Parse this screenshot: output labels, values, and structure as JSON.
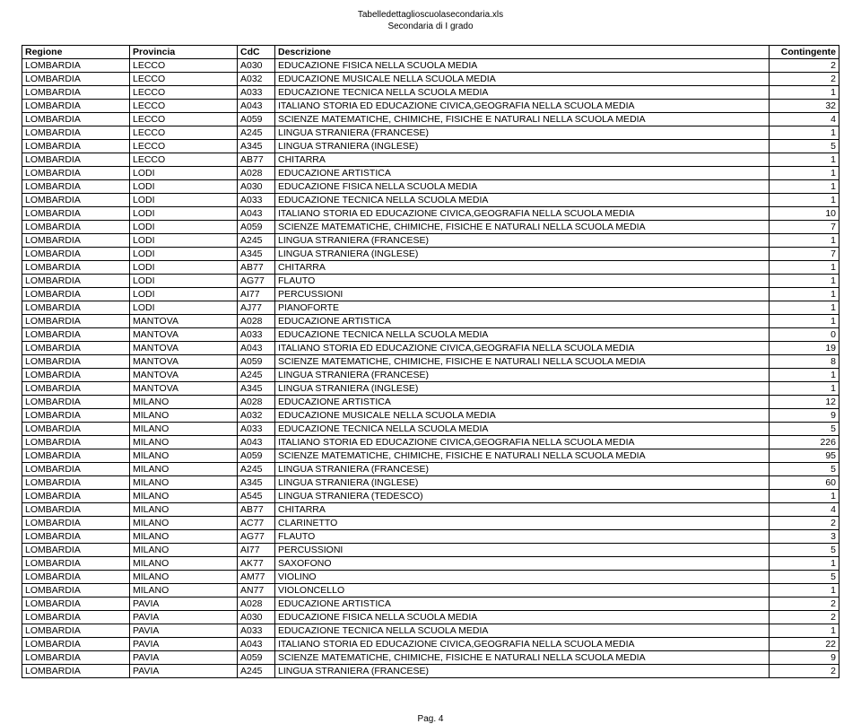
{
  "header": {
    "filename": "Tabelledettaglioscuolasecondaria.xls",
    "subtitle": "Secondaria di I grado"
  },
  "columns": {
    "regione": "Regione",
    "provincia": "Provincia",
    "cdc": "CdC",
    "descrizione": "Descrizione",
    "contingente": "Contingente"
  },
  "rows": [
    {
      "regione": "LOMBARDIA",
      "provincia": "LECCO",
      "cdc": "A030",
      "desc": "EDUCAZIONE FISICA NELLA SCUOLA MEDIA",
      "cont": "2"
    },
    {
      "regione": "LOMBARDIA",
      "provincia": "LECCO",
      "cdc": "A032",
      "desc": "EDUCAZIONE MUSICALE NELLA SCUOLA MEDIA",
      "cont": "2"
    },
    {
      "regione": "LOMBARDIA",
      "provincia": "LECCO",
      "cdc": "A033",
      "desc": "EDUCAZIONE TECNICA NELLA SCUOLA MEDIA",
      "cont": "1"
    },
    {
      "regione": "LOMBARDIA",
      "provincia": "LECCO",
      "cdc": "A043",
      "desc": "ITALIANO STORIA ED EDUCAZIONE CIVICA,GEOGRAFIA NELLA SCUOLA MEDIA",
      "cont": "32"
    },
    {
      "regione": "LOMBARDIA",
      "provincia": "LECCO",
      "cdc": "A059",
      "desc": "SCIENZE MATEMATICHE, CHIMICHE, FISICHE E NATURALI NELLA SCUOLA MEDIA",
      "cont": "4"
    },
    {
      "regione": "LOMBARDIA",
      "provincia": "LECCO",
      "cdc": "A245",
      "desc": "LINGUA STRANIERA (FRANCESE)",
      "cont": "1"
    },
    {
      "regione": "LOMBARDIA",
      "provincia": "LECCO",
      "cdc": "A345",
      "desc": "LINGUA STRANIERA (INGLESE)",
      "cont": "5"
    },
    {
      "regione": "LOMBARDIA",
      "provincia": "LECCO",
      "cdc": "AB77",
      "desc": "CHITARRA",
      "cont": "1"
    },
    {
      "regione": "LOMBARDIA",
      "provincia": "LODI",
      "cdc": "A028",
      "desc": "EDUCAZIONE ARTISTICA",
      "cont": "1"
    },
    {
      "regione": "LOMBARDIA",
      "provincia": "LODI",
      "cdc": "A030",
      "desc": "EDUCAZIONE FISICA NELLA SCUOLA MEDIA",
      "cont": "1"
    },
    {
      "regione": "LOMBARDIA",
      "provincia": "LODI",
      "cdc": "A033",
      "desc": "EDUCAZIONE TECNICA NELLA SCUOLA MEDIA",
      "cont": "1"
    },
    {
      "regione": "LOMBARDIA",
      "provincia": "LODI",
      "cdc": "A043",
      "desc": "ITALIANO STORIA ED EDUCAZIONE CIVICA,GEOGRAFIA NELLA SCUOLA MEDIA",
      "cont": "10"
    },
    {
      "regione": "LOMBARDIA",
      "provincia": "LODI",
      "cdc": "A059",
      "desc": "SCIENZE MATEMATICHE, CHIMICHE, FISICHE E NATURALI NELLA SCUOLA MEDIA",
      "cont": "7"
    },
    {
      "regione": "LOMBARDIA",
      "provincia": "LODI",
      "cdc": "A245",
      "desc": "LINGUA STRANIERA (FRANCESE)",
      "cont": "1"
    },
    {
      "regione": "LOMBARDIA",
      "provincia": "LODI",
      "cdc": "A345",
      "desc": "LINGUA STRANIERA (INGLESE)",
      "cont": "7"
    },
    {
      "regione": "LOMBARDIA",
      "provincia": "LODI",
      "cdc": "AB77",
      "desc": "CHITARRA",
      "cont": "1"
    },
    {
      "regione": "LOMBARDIA",
      "provincia": "LODI",
      "cdc": "AG77",
      "desc": "FLAUTO",
      "cont": "1"
    },
    {
      "regione": "LOMBARDIA",
      "provincia": "LODI",
      "cdc": "AI77",
      "desc": "PERCUSSIONI",
      "cont": "1"
    },
    {
      "regione": "LOMBARDIA",
      "provincia": "LODI",
      "cdc": "AJ77",
      "desc": "PIANOFORTE",
      "cont": "1"
    },
    {
      "regione": "LOMBARDIA",
      "provincia": "MANTOVA",
      "cdc": "A028",
      "desc": "EDUCAZIONE ARTISTICA",
      "cont": "1"
    },
    {
      "regione": "LOMBARDIA",
      "provincia": "MANTOVA",
      "cdc": "A033",
      "desc": "EDUCAZIONE TECNICA NELLA SCUOLA MEDIA",
      "cont": "0"
    },
    {
      "regione": "LOMBARDIA",
      "provincia": "MANTOVA",
      "cdc": "A043",
      "desc": "ITALIANO STORIA ED EDUCAZIONE CIVICA,GEOGRAFIA NELLA SCUOLA MEDIA",
      "cont": "19"
    },
    {
      "regione": "LOMBARDIA",
      "provincia": "MANTOVA",
      "cdc": "A059",
      "desc": "SCIENZE MATEMATICHE, CHIMICHE, FISICHE E NATURALI NELLA SCUOLA MEDIA",
      "cont": "8"
    },
    {
      "regione": "LOMBARDIA",
      "provincia": "MANTOVA",
      "cdc": "A245",
      "desc": "LINGUA STRANIERA (FRANCESE)",
      "cont": "1"
    },
    {
      "regione": "LOMBARDIA",
      "provincia": "MANTOVA",
      "cdc": "A345",
      "desc": "LINGUA STRANIERA (INGLESE)",
      "cont": "1"
    },
    {
      "regione": "LOMBARDIA",
      "provincia": "MILANO",
      "cdc": "A028",
      "desc": "EDUCAZIONE ARTISTICA",
      "cont": "12"
    },
    {
      "regione": "LOMBARDIA",
      "provincia": "MILANO",
      "cdc": "A032",
      "desc": "EDUCAZIONE MUSICALE NELLA SCUOLA MEDIA",
      "cont": "9"
    },
    {
      "regione": "LOMBARDIA",
      "provincia": "MILANO",
      "cdc": "A033",
      "desc": "EDUCAZIONE TECNICA NELLA SCUOLA MEDIA",
      "cont": "5"
    },
    {
      "regione": "LOMBARDIA",
      "provincia": "MILANO",
      "cdc": "A043",
      "desc": "ITALIANO STORIA ED EDUCAZIONE CIVICA,GEOGRAFIA NELLA SCUOLA MEDIA",
      "cont": "226"
    },
    {
      "regione": "LOMBARDIA",
      "provincia": "MILANO",
      "cdc": "A059",
      "desc": "SCIENZE MATEMATICHE, CHIMICHE, FISICHE E NATURALI NELLA SCUOLA MEDIA",
      "cont": "95"
    },
    {
      "regione": "LOMBARDIA",
      "provincia": "MILANO",
      "cdc": "A245",
      "desc": "LINGUA STRANIERA (FRANCESE)",
      "cont": "5"
    },
    {
      "regione": "LOMBARDIA",
      "provincia": "MILANO",
      "cdc": "A345",
      "desc": "LINGUA STRANIERA (INGLESE)",
      "cont": "60"
    },
    {
      "regione": "LOMBARDIA",
      "provincia": "MILANO",
      "cdc": "A545",
      "desc": "LINGUA STRANIERA (TEDESCO)",
      "cont": "1"
    },
    {
      "regione": "LOMBARDIA",
      "provincia": "MILANO",
      "cdc": "AB77",
      "desc": "CHITARRA",
      "cont": "4"
    },
    {
      "regione": "LOMBARDIA",
      "provincia": "MILANO",
      "cdc": "AC77",
      "desc": "CLARINETTO",
      "cont": "2"
    },
    {
      "regione": "LOMBARDIA",
      "provincia": "MILANO",
      "cdc": "AG77",
      "desc": "FLAUTO",
      "cont": "3"
    },
    {
      "regione": "LOMBARDIA",
      "provincia": "MILANO",
      "cdc": "AI77",
      "desc": "PERCUSSIONI",
      "cont": "5"
    },
    {
      "regione": "LOMBARDIA",
      "provincia": "MILANO",
      "cdc": "AK77",
      "desc": "SAXOFONO",
      "cont": "1"
    },
    {
      "regione": "LOMBARDIA",
      "provincia": "MILANO",
      "cdc": "AM77",
      "desc": "VIOLINO",
      "cont": "5"
    },
    {
      "regione": "LOMBARDIA",
      "provincia": "MILANO",
      "cdc": "AN77",
      "desc": "VIOLONCELLO",
      "cont": "1"
    },
    {
      "regione": "LOMBARDIA",
      "provincia": "PAVIA",
      "cdc": "A028",
      "desc": "EDUCAZIONE ARTISTICA",
      "cont": "2"
    },
    {
      "regione": "LOMBARDIA",
      "provincia": "PAVIA",
      "cdc": "A030",
      "desc": "EDUCAZIONE FISICA NELLA SCUOLA MEDIA",
      "cont": "2"
    },
    {
      "regione": "LOMBARDIA",
      "provincia": "PAVIA",
      "cdc": "A033",
      "desc": "EDUCAZIONE TECNICA NELLA SCUOLA MEDIA",
      "cont": "1"
    },
    {
      "regione": "LOMBARDIA",
      "provincia": "PAVIA",
      "cdc": "A043",
      "desc": "ITALIANO STORIA ED EDUCAZIONE CIVICA,GEOGRAFIA NELLA SCUOLA MEDIA",
      "cont": "22"
    },
    {
      "regione": "LOMBARDIA",
      "provincia": "PAVIA",
      "cdc": "A059",
      "desc": "SCIENZE MATEMATICHE, CHIMICHE, FISICHE E NATURALI NELLA SCUOLA MEDIA",
      "cont": "9"
    },
    {
      "regione": "LOMBARDIA",
      "provincia": "PAVIA",
      "cdc": "A245",
      "desc": "LINGUA STRANIERA (FRANCESE)",
      "cont": "2"
    }
  ],
  "footer": {
    "page_label": "Pag. 4"
  }
}
